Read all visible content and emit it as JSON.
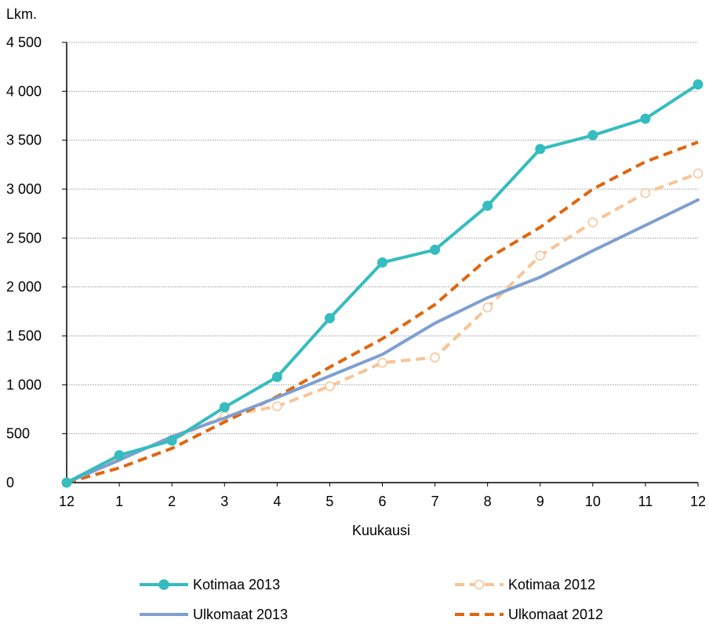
{
  "chart_data": {
    "type": "line",
    "ylabel": "Lkm.",
    "xlabel": "Kuukausi",
    "categories": [
      "12",
      "1",
      "2",
      "3",
      "4",
      "5",
      "6",
      "7",
      "8",
      "9",
      "10",
      "11",
      "12"
    ],
    "ylim": [
      0,
      4500
    ],
    "yticks": [
      0,
      500,
      1000,
      1500,
      2000,
      2500,
      3000,
      3500,
      4000,
      4500
    ],
    "ytick_labels": [
      "0",
      "500",
      "1 000",
      "1 500",
      "2 000",
      "2 500",
      "3 000",
      "3 500",
      "4 000",
      "4 500"
    ],
    "grid": true,
    "legend_position": "bottom",
    "series": [
      {
        "name": "Kotimaa 2013",
        "color": "#35bcbf",
        "style": "solid-marker-filled",
        "values": [
          0,
          280,
          430,
          770,
          1080,
          1680,
          2250,
          2380,
          2830,
          3410,
          3550,
          3720,
          4070
        ]
      },
      {
        "name": "Kotimaa 2012",
        "color": "#f8c495",
        "style": "dashed-marker-open",
        "values": [
          0,
          265,
          440,
          680,
          780,
          985,
          1225,
          1280,
          1790,
          2320,
          2660,
          2960,
          3160
        ]
      },
      {
        "name": "Ulkomaat 2013",
        "color": "#7f9fd0",
        "style": "solid",
        "values": [
          0,
          230,
          470,
          660,
          870,
          1090,
          1310,
          1630,
          1890,
          2100,
          2370,
          2630,
          2890
        ]
      },
      {
        "name": "Ulkomaat 2012",
        "color": "#e0660f",
        "style": "dashed",
        "values": [
          0,
          150,
          350,
          620,
          880,
          1180,
          1470,
          1820,
          2290,
          2610,
          3000,
          3280,
          3480
        ]
      }
    ]
  }
}
